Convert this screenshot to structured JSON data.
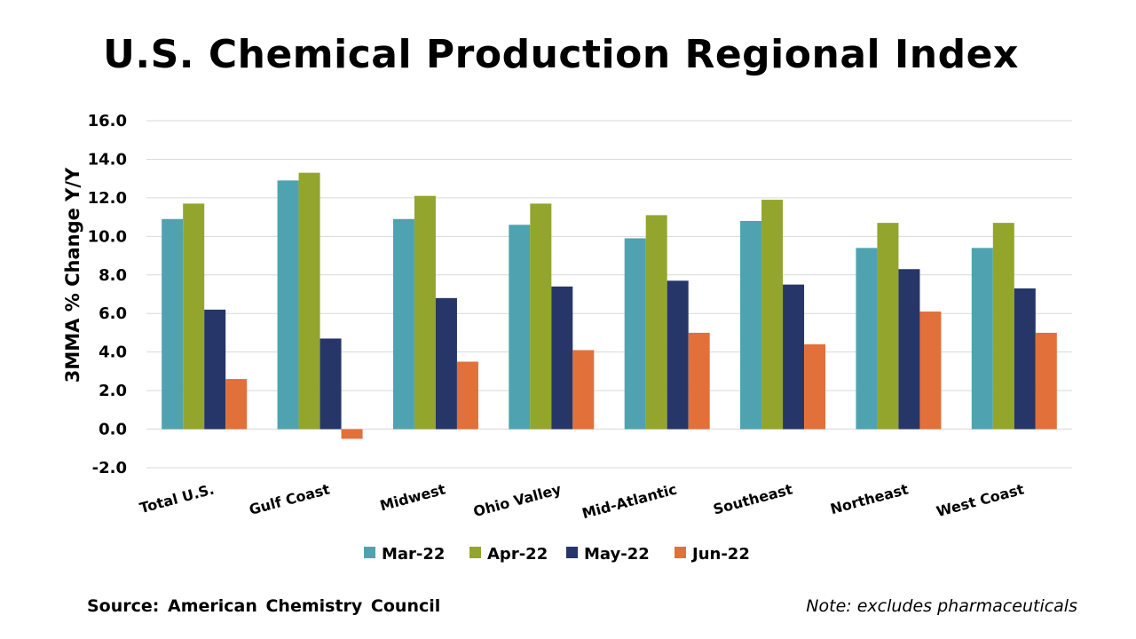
{
  "title": "U.S. Chemical Production Regional Index",
  "source": "Source: American Chemistry Council",
  "note": "Note: excludes pharmaceuticals",
  "chart_data": {
    "type": "bar",
    "title": "U.S. Chemical Production Regional Index",
    "xlabel": "",
    "ylabel": "3MMA % Change Y/Y",
    "ylim": [
      -2.0,
      16.0
    ],
    "yticks": [
      -2.0,
      0.0,
      2.0,
      4.0,
      6.0,
      8.0,
      10.0,
      12.0,
      14.0,
      16.0
    ],
    "grid": true,
    "legend_position": "bottom",
    "categories": [
      "Total U.S.",
      "Gulf Coast",
      "Midwest",
      "Ohio Valley",
      "Mid-Atlantic",
      "Southeast",
      "Northeast",
      "West Coast"
    ],
    "series": [
      {
        "name": "Mar-22",
        "color": "#4fa3b0",
        "values": [
          10.9,
          12.9,
          10.9,
          10.6,
          9.9,
          10.8,
          9.4,
          9.4
        ]
      },
      {
        "name": "Apr-22",
        "color": "#93a52c",
        "values": [
          11.7,
          13.3,
          12.1,
          11.7,
          11.1,
          11.9,
          10.7,
          10.7
        ]
      },
      {
        "name": "May-22",
        "color": "#273668",
        "values": [
          6.2,
          4.7,
          6.8,
          7.4,
          7.7,
          7.5,
          8.3,
          7.3
        ]
      },
      {
        "name": "Jun-22",
        "color": "#e2703a",
        "values": [
          2.6,
          -0.5,
          3.5,
          4.1,
          5.0,
          4.4,
          6.1,
          5.0
        ]
      }
    ]
  }
}
